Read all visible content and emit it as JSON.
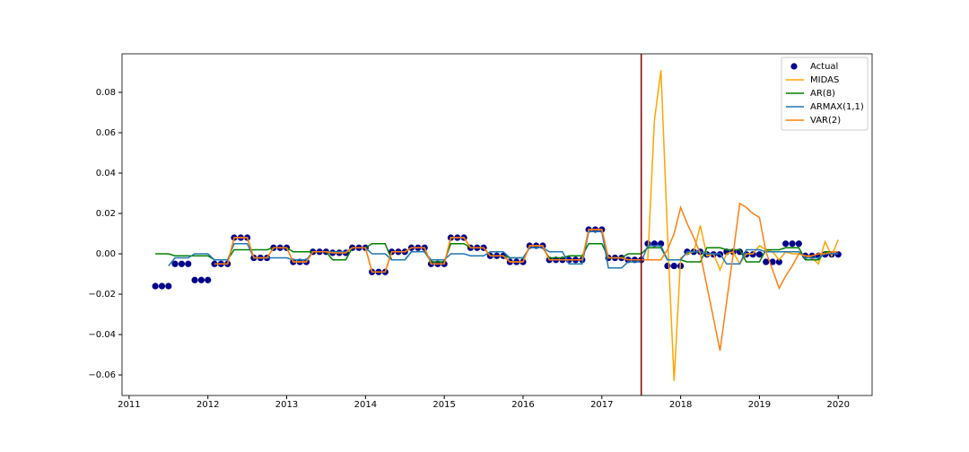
{
  "chart_data": {
    "type": "line",
    "x": [
      2011.333,
      2011.417,
      2011.5,
      2011.583,
      2011.667,
      2011.75,
      2011.833,
      2011.917,
      2012.0,
      2012.083,
      2012.167,
      2012.25,
      2012.333,
      2012.417,
      2012.5,
      2012.583,
      2012.667,
      2012.75,
      2012.833,
      2012.917,
      2013.0,
      2013.083,
      2013.167,
      2013.25,
      2013.333,
      2013.417,
      2013.5,
      2013.583,
      2013.667,
      2013.75,
      2013.833,
      2013.917,
      2014.0,
      2014.083,
      2014.167,
      2014.25,
      2014.333,
      2014.417,
      2014.5,
      2014.583,
      2014.667,
      2014.75,
      2014.833,
      2014.917,
      2015.0,
      2015.083,
      2015.167,
      2015.25,
      2015.333,
      2015.417,
      2015.5,
      2015.583,
      2015.667,
      2015.75,
      2015.833,
      2015.917,
      2016.0,
      2016.083,
      2016.167,
      2016.25,
      2016.333,
      2016.417,
      2016.5,
      2016.583,
      2016.667,
      2016.75,
      2016.833,
      2016.917,
      2017.0,
      2017.083,
      2017.167,
      2017.25,
      2017.333,
      2017.417,
      2017.5,
      2017.583,
      2017.667,
      2017.75,
      2017.833,
      2017.917,
      2018.0,
      2018.083,
      2018.167,
      2018.25,
      2018.333,
      2018.417,
      2018.5,
      2018.583,
      2018.667,
      2018.75,
      2018.833,
      2018.917,
      2019.0,
      2019.083,
      2019.167,
      2019.25,
      2019.333,
      2019.417,
      2019.5,
      2019.583,
      2019.667,
      2019.75,
      2019.833,
      2019.917,
      2020.0
    ],
    "series": [
      {
        "name": "Actual",
        "type": "scatter",
        "color": "#00008b",
        "values": [
          -0.016,
          -0.016,
          -0.016,
          -0.005,
          -0.005,
          -0.005,
          -0.013,
          -0.013,
          -0.013,
          -0.005,
          -0.005,
          -0.005,
          0.008,
          0.008,
          0.008,
          -0.002,
          -0.002,
          -0.002,
          0.003,
          0.003,
          0.003,
          -0.004,
          -0.004,
          -0.004,
          0.001,
          0.001,
          0.001,
          0.0005,
          0.0005,
          0.0005,
          0.003,
          0.003,
          0.003,
          -0.009,
          -0.009,
          -0.009,
          0.001,
          0.001,
          0.001,
          0.003,
          0.003,
          0.003,
          -0.005,
          -0.005,
          -0.005,
          0.008,
          0.008,
          0.008,
          0.003,
          0.003,
          0.003,
          -0.001,
          -0.001,
          -0.001,
          -0.004,
          -0.004,
          -0.004,
          0.004,
          0.004,
          0.004,
          -0.003,
          -0.003,
          -0.003,
          -0.003,
          -0.003,
          -0.003,
          0.012,
          0.012,
          0.012,
          -0.002,
          -0.002,
          -0.002,
          -0.003,
          -0.003,
          -0.003,
          0.005,
          0.005,
          0.005,
          -0.006,
          -0.006,
          -0.006,
          0.001,
          0.001,
          0.001,
          -0.0003,
          -0.0003,
          -0.0003,
          0.001,
          0.001,
          0.001,
          -0.0003,
          -0.0003,
          -0.0003,
          -0.004,
          -0.004,
          -0.004,
          0.005,
          0.005,
          0.005,
          -0.001,
          -0.001,
          -0.001,
          -0.0003,
          -0.0003,
          -0.0003
        ]
      },
      {
        "name": "MIDAS",
        "type": "line",
        "color": "#ffa500",
        "values": [
          null,
          null,
          null,
          null,
          null,
          null,
          null,
          null,
          null,
          -0.005,
          -0.005,
          -0.005,
          0.008,
          0.008,
          0.008,
          -0.002,
          -0.002,
          -0.002,
          0.003,
          0.003,
          0.003,
          -0.004,
          -0.004,
          -0.004,
          0.001,
          0.001,
          0.001,
          0.0005,
          0.0005,
          0.0005,
          0.003,
          0.003,
          0.003,
          -0.009,
          -0.009,
          -0.009,
          0.001,
          0.001,
          0.001,
          0.003,
          0.003,
          0.003,
          -0.005,
          -0.005,
          -0.005,
          0.008,
          0.008,
          0.008,
          0.003,
          0.003,
          0.003,
          -0.001,
          -0.001,
          -0.001,
          -0.004,
          -0.004,
          -0.004,
          0.004,
          0.004,
          0.004,
          -0.003,
          -0.003,
          -0.003,
          -0.003,
          -0.003,
          -0.003,
          0.012,
          0.012,
          0.012,
          -0.002,
          -0.002,
          -0.002,
          -0.003,
          -0.003,
          -0.003,
          -0.003,
          0.066,
          0.091,
          0.01,
          -0.063,
          -0.002,
          0.0,
          0.001,
          0.014,
          -0.001,
          0.0,
          -0.008,
          0.0,
          0.001,
          -0.005,
          0.0,
          0.0,
          0.004,
          0.002,
          0.001,
          -0.003,
          0.001,
          0.0,
          0.0,
          -0.001,
          -0.002,
          -0.005,
          0.006,
          -0.001,
          0.007
        ]
      },
      {
        "name": "AR(8)",
        "type": "line",
        "color": "#008000",
        "values": [
          0.0,
          0.0,
          0.0,
          -0.001,
          -0.001,
          -0.001,
          -0.001,
          -0.001,
          -0.001,
          -0.003,
          -0.003,
          -0.003,
          0.002,
          0.002,
          0.002,
          0.002,
          0.002,
          0.002,
          0.003,
          0.003,
          0.003,
          0.001,
          0.001,
          0.001,
          0.001,
          0.001,
          0.001,
          -0.003,
          -0.003,
          -0.003,
          0.003,
          0.003,
          0.003,
          0.005,
          0.005,
          0.005,
          -0.003,
          -0.003,
          -0.003,
          0.001,
          0.001,
          0.001,
          -0.004,
          -0.004,
          -0.004,
          0.005,
          0.005,
          0.005,
          0.003,
          0.003,
          0.003,
          -0.001,
          -0.001,
          -0.001,
          -0.002,
          -0.002,
          -0.002,
          0.003,
          0.003,
          0.003,
          -0.002,
          -0.002,
          -0.002,
          -0.001,
          -0.001,
          -0.001,
          0.005,
          0.005,
          0.005,
          -0.002,
          -0.002,
          -0.002,
          0.0,
          0.0,
          0.0,
          0.003,
          0.003,
          0.003,
          -0.003,
          -0.003,
          -0.003,
          -0.004,
          -0.004,
          -0.004,
          0.003,
          0.003,
          0.003,
          0.002,
          0.002,
          0.002,
          -0.004,
          -0.004,
          -0.004,
          0.002,
          0.002,
          0.002,
          0.003,
          0.003,
          0.003,
          -0.003,
          -0.003,
          -0.003,
          0.001,
          0.001,
          0.001
        ]
      },
      {
        "name": "ARMAX(1,1)",
        "type": "line",
        "color": "#1f77b4",
        "values": [
          null,
          null,
          -0.006,
          -0.002,
          -0.002,
          -0.002,
          0.0,
          0.0,
          0.0,
          -0.003,
          -0.003,
          -0.003,
          0.005,
          0.005,
          0.005,
          -0.002,
          -0.002,
          -0.002,
          -0.002,
          -0.002,
          -0.002,
          -0.003,
          -0.003,
          -0.003,
          0.001,
          0.001,
          0.001,
          0.001,
          0.001,
          0.001,
          0.003,
          0.003,
          0.003,
          0.0,
          0.0,
          0.0,
          -0.003,
          -0.003,
          -0.003,
          0.001,
          0.001,
          0.001,
          -0.003,
          -0.003,
          -0.003,
          0.0,
          0.0,
          0.0,
          -0.001,
          -0.001,
          -0.001,
          0.001,
          0.001,
          0.001,
          -0.002,
          -0.002,
          -0.002,
          0.003,
          0.003,
          0.003,
          0.001,
          0.001,
          0.001,
          -0.005,
          -0.005,
          -0.005,
          0.011,
          0.011,
          0.011,
          -0.007,
          -0.007,
          -0.007,
          -0.004,
          -0.004,
          -0.004,
          0.004,
          0.004,
          0.004,
          -0.003,
          -0.003,
          -0.003,
          0.001,
          0.001,
          0.001,
          0.0,
          0.0,
          0.0,
          -0.005,
          -0.005,
          -0.005,
          0.002,
          0.002,
          0.002,
          0.001,
          0.001,
          0.001,
          0.001,
          0.001,
          0.001,
          -0.002,
          -0.002,
          -0.002,
          0.0,
          0.0,
          0.0
        ]
      },
      {
        "name": "VAR(2)",
        "type": "line",
        "color": "#ff7f0e",
        "values": [
          null,
          null,
          null,
          null,
          null,
          null,
          null,
          null,
          null,
          -0.005,
          -0.005,
          -0.005,
          0.008,
          0.008,
          0.008,
          -0.002,
          -0.002,
          -0.002,
          0.003,
          0.003,
          0.003,
          -0.004,
          -0.004,
          -0.004,
          0.001,
          0.001,
          0.001,
          0.0005,
          0.0005,
          0.0005,
          0.003,
          0.003,
          0.003,
          -0.009,
          -0.009,
          -0.009,
          0.001,
          0.001,
          0.001,
          0.003,
          0.003,
          0.003,
          -0.005,
          -0.005,
          -0.005,
          0.008,
          0.008,
          0.008,
          0.003,
          0.003,
          0.003,
          -0.001,
          -0.001,
          -0.001,
          -0.004,
          -0.004,
          -0.004,
          0.004,
          0.004,
          0.004,
          -0.003,
          -0.003,
          -0.003,
          -0.003,
          -0.003,
          -0.003,
          0.012,
          0.012,
          0.012,
          -0.002,
          -0.002,
          -0.002,
          -0.003,
          -0.003,
          -0.003,
          -0.003,
          -0.003,
          -0.003,
          0.002,
          0.01,
          0.023,
          0.015,
          0.008,
          0.0,
          -0.016,
          -0.032,
          -0.048,
          -0.024,
          0.0,
          0.025,
          0.023,
          0.02,
          0.018,
          0.001,
          -0.008,
          -0.017,
          -0.011,
          -0.006,
          0.0,
          -0.001,
          -0.001,
          0.0,
          0.0,
          0.001,
          0.001
        ]
      }
    ],
    "vline": 2017.5,
    "vline_color": "#8b0000",
    "xlim": [
      2010.91,
      2020.43
    ],
    "xticks": [
      2011,
      2012,
      2013,
      2014,
      2015,
      2016,
      2017,
      2018,
      2019,
      2020
    ],
    "ylim": [
      -0.0702,
      0.0991
    ],
    "yticks": [
      {
        "value": -0.06,
        "label": "−0.06"
      },
      {
        "value": -0.04,
        "label": "−0.04"
      },
      {
        "value": -0.02,
        "label": "−0.02"
      },
      {
        "value": 0,
        "label": "0.00"
      },
      0.02,
      0.04,
      0.06,
      0.08
    ],
    "legend": "upper right"
  }
}
